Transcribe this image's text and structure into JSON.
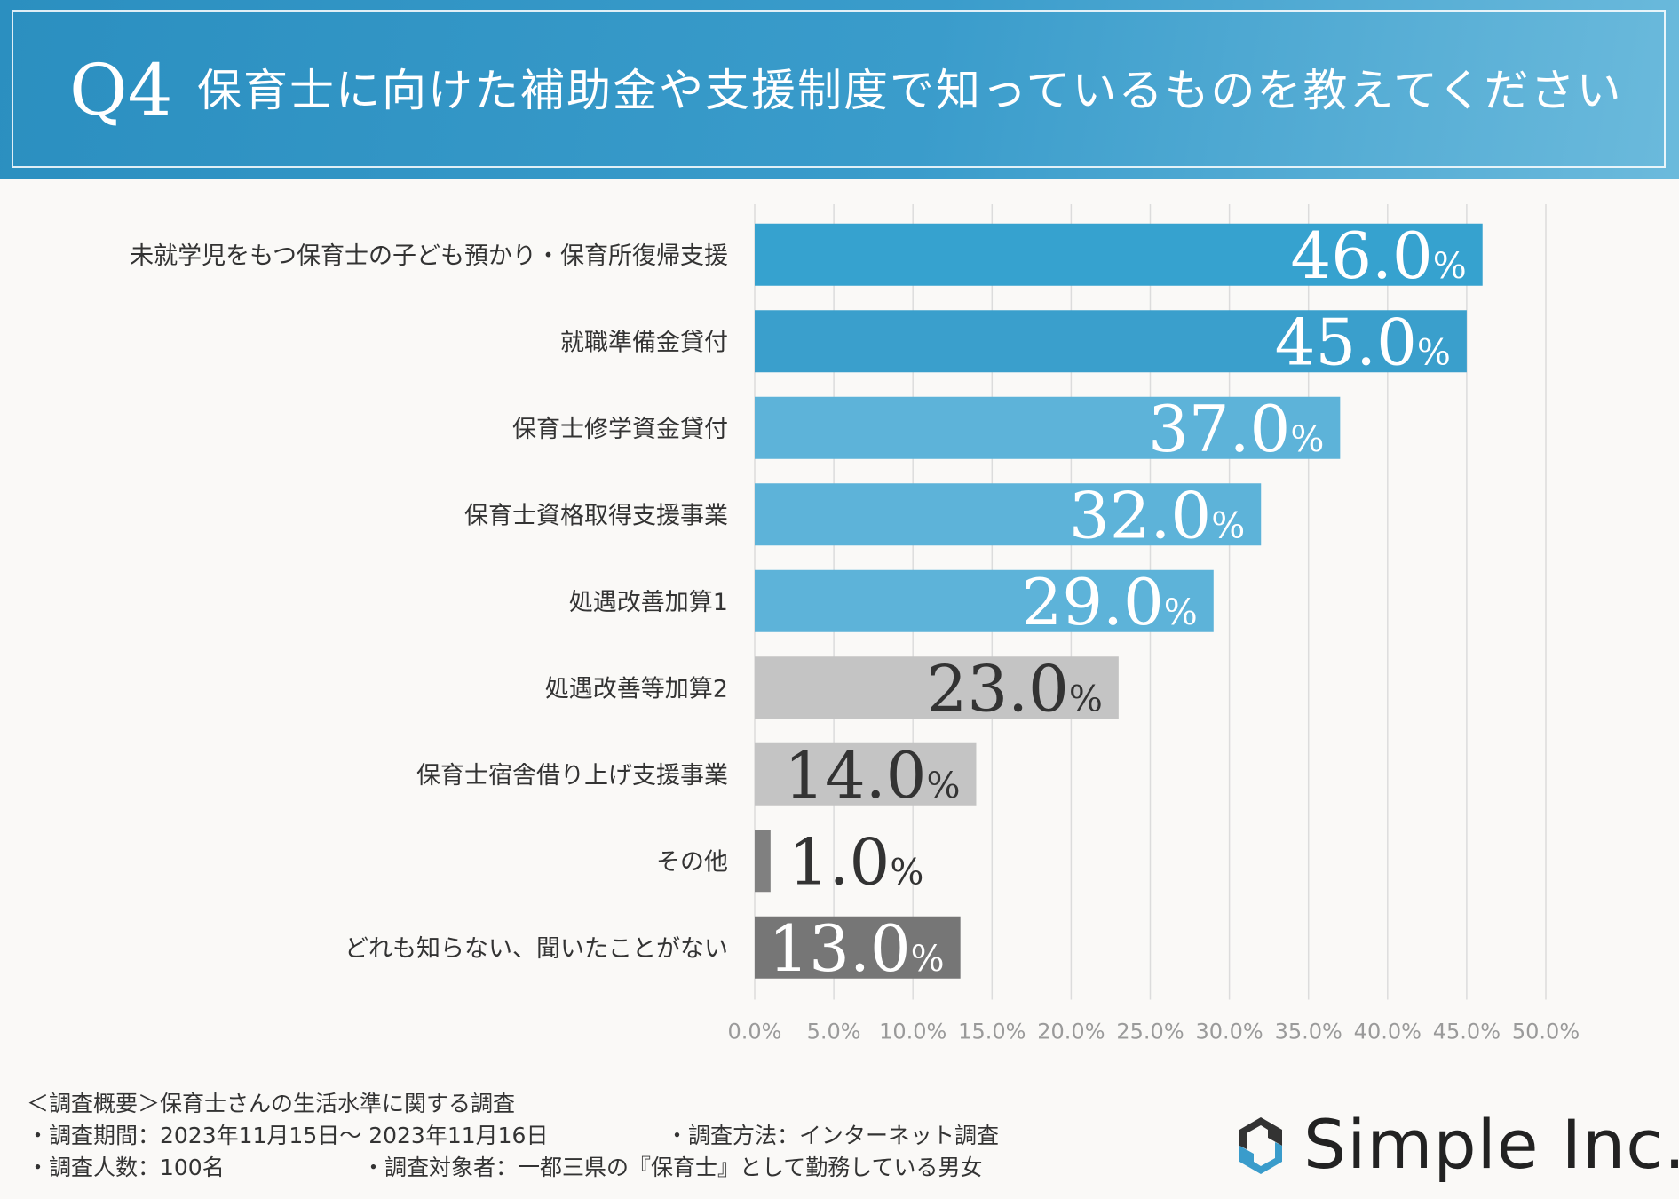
{
  "header": {
    "question_number": "Q4",
    "question_text": "保育士に向けた補助金や支援制度で知っているものを教えてください"
  },
  "chart_data": {
    "type": "bar",
    "orientation": "horizontal",
    "categories": [
      "未就学児をもつ保育士の子ども預かり・保育所復帰支援",
      "就職準備金貸付",
      "保育士修学資金貸付",
      "保育士資格取得支援事業",
      "処遇改善加算1",
      "処遇改善等加算2",
      "保育士宿舎借り上げ支援事業",
      "その他",
      "どれも知らない、聞いたことがない"
    ],
    "values": [
      46.0,
      45.0,
      37.0,
      32.0,
      29.0,
      23.0,
      14.0,
      1.0,
      13.0
    ],
    "value_labels": [
      "46.0",
      "45.0",
      "37.0",
      "32.0",
      "29.0",
      "23.0",
      "14.0",
      "1.0",
      "13.0"
    ],
    "value_unit": "%",
    "bar_colors": [
      "#36a2cf",
      "#3a9fcc",
      "#5db3d9",
      "#5db3d9",
      "#5db3d9",
      "#c4c4c4",
      "#c4c4c4",
      "#808080",
      "#767676"
    ],
    "label_colors": [
      "#ffffff",
      "#ffffff",
      "#ffffff",
      "#ffffff",
      "#ffffff",
      "#333333",
      "#333333",
      "#333333",
      "#ffffff"
    ],
    "xlim": [
      0,
      50
    ],
    "x_ticks": [
      "0.0%",
      "5.0%",
      "10.0%",
      "15.0%",
      "20.0%",
      "25.0%",
      "30.0%",
      "35.0%",
      "40.0%",
      "45.0%",
      "50.0%"
    ],
    "grid": true
  },
  "footer": {
    "overview": "＜調査概要＞保育士さんの生活水準に関する調査",
    "period": "・調査期間：2023年11月15日～ 2023年11月16日",
    "method": "・調査方法：インターネット調査",
    "respondents": "・調査人数：100名",
    "target": "・調査対象者：一都三県の『保育士』として勤務している男女"
  },
  "brand": {
    "name": "Simple Inc.",
    "logo_icon": "simple-logo-icon",
    "logo_colors": [
      "#3a9ccb",
      "#333333"
    ]
  }
}
